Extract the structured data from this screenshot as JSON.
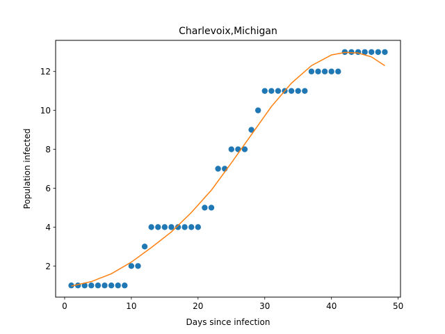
{
  "chart_data": {
    "type": "scatter",
    "title": "Charlevoix,Michigan",
    "xlabel": "Days since infection",
    "ylabel": "Population infected",
    "xlim": [
      -1.35,
      50.35
    ],
    "ylim": [
      0.4,
      13.6
    ],
    "x_ticks": [
      0,
      10,
      20,
      30,
      40,
      50
    ],
    "y_ticks": [
      2,
      4,
      6,
      8,
      10,
      12
    ],
    "grid": false,
    "series": [
      {
        "kind": "points",
        "color": "#1f77b4",
        "points": [
          [
            1,
            1
          ],
          [
            2,
            1
          ],
          [
            3,
            1
          ],
          [
            4,
            1
          ],
          [
            5,
            1
          ],
          [
            6,
            1
          ],
          [
            7,
            1
          ],
          [
            8,
            1
          ],
          [
            9,
            1
          ],
          [
            10,
            2
          ],
          [
            11,
            2
          ],
          [
            12,
            3
          ],
          [
            13,
            4
          ],
          [
            14,
            4
          ],
          [
            15,
            4
          ],
          [
            16,
            4
          ],
          [
            17,
            4
          ],
          [
            18,
            4
          ],
          [
            19,
            4
          ],
          [
            20,
            4
          ],
          [
            21,
            5
          ],
          [
            22,
            5
          ],
          [
            23,
            7
          ],
          [
            24,
            7
          ],
          [
            25,
            8
          ],
          [
            26,
            8
          ],
          [
            27,
            8
          ],
          [
            28,
            9
          ],
          [
            29,
            10
          ],
          [
            30,
            11
          ],
          [
            31,
            11
          ],
          [
            32,
            11
          ],
          [
            33,
            11
          ],
          [
            34,
            11
          ],
          [
            35,
            11
          ],
          [
            36,
            11
          ],
          [
            37,
            12
          ],
          [
            38,
            12
          ],
          [
            39,
            12
          ],
          [
            40,
            12
          ],
          [
            41,
            12
          ],
          [
            42,
            13
          ],
          [
            43,
            13
          ],
          [
            44,
            13
          ],
          [
            45,
            13
          ],
          [
            46,
            13
          ],
          [
            47,
            13
          ],
          [
            48,
            13
          ]
        ]
      },
      {
        "kind": "fit-line",
        "color": "#ff7f0e",
        "points": [
          [
            1,
            0.97
          ],
          [
            4,
            1.2
          ],
          [
            7,
            1.6
          ],
          [
            10,
            2.2
          ],
          [
            13,
            2.95
          ],
          [
            16,
            3.75
          ],
          [
            19,
            4.75
          ],
          [
            22,
            5.9
          ],
          [
            25,
            7.3
          ],
          [
            28,
            8.75
          ],
          [
            31,
            10.2
          ],
          [
            34,
            11.4
          ],
          [
            37,
            12.3
          ],
          [
            40,
            12.85
          ],
          [
            42,
            12.98
          ],
          [
            44,
            12.95
          ],
          [
            46,
            12.75
          ],
          [
            48,
            12.3
          ]
        ]
      }
    ]
  }
}
